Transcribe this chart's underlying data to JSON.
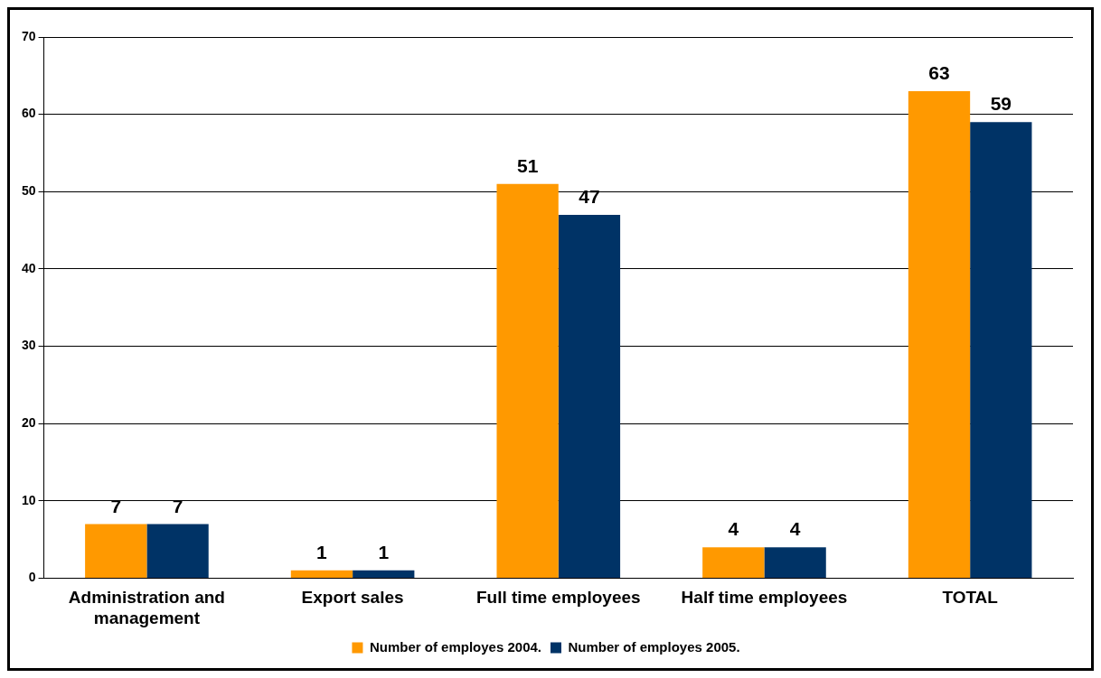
{
  "chart_data": {
    "type": "bar",
    "categories": [
      "Administration and management",
      "Export sales",
      "Full time employees",
      "Half time employees",
      "TOTAL"
    ],
    "series": [
      {
        "name": "Number of employes 2004.",
        "color": "#ff9900",
        "values": [
          7,
          1,
          51,
          4,
          63
        ]
      },
      {
        "name": "Number of employes 2005.",
        "color": "#003366",
        "values": [
          7,
          1,
          47,
          4,
          59
        ]
      }
    ],
    "ylim": [
      0,
      70
    ],
    "yticks": [
      0,
      10,
      20,
      30,
      40,
      50,
      60,
      70
    ],
    "grid": "y",
    "legend": "bottom",
    "data_labels": true
  }
}
